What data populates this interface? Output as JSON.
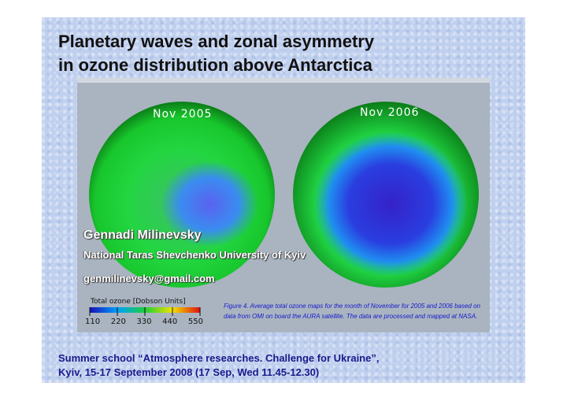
{
  "title": {
    "line1": "Planetary waves and zonal asymmetry",
    "line2": "in ozone distribution above Antarctica"
  },
  "maps": {
    "left_label": "Nov 2005",
    "right_label": "Nov 2006"
  },
  "author": {
    "name": "Gennadi Milinevsky",
    "university": "National Taras Shevchenko University of Kyiv",
    "email": "genmilinevsky@gmail.com"
  },
  "colorbar": {
    "title": "Total ozone [Dobson Units]",
    "ticks": [
      "110",
      "220",
      "330",
      "440",
      "550"
    ],
    "colors": [
      "#1a0fb4",
      "#00a0ff",
      "#1ccf3a",
      "#f2e200",
      "#e01010"
    ]
  },
  "caption": "Figure 4. Average total ozone maps for the month of November for 2005 and 2006 based on data from OMI on board the AURA satellite. The data are processed and mapped at NASA.",
  "footer": {
    "line1": "Summer school “Atmosphere researches. Challenge for Ukraine”,",
    "line2": "Kyiv, 15-17 September 2008 (17 Sep, Wed 11.45-12.30)"
  }
}
